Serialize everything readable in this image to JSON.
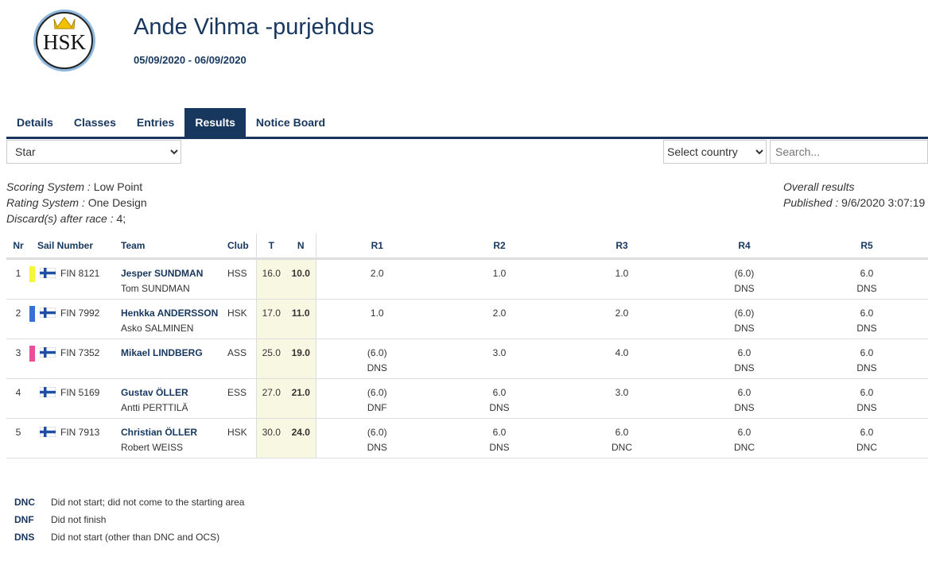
{
  "header": {
    "logo_text": "HSK",
    "title": "Ande Vihma -purjehdus",
    "dates": "05/09/2020 - 06/09/2020"
  },
  "tabs": [
    "Details",
    "Classes",
    "Entries",
    "Results",
    "Notice Board"
  ],
  "active_tab": 3,
  "filters": {
    "class_select": "Star",
    "country_select": "Select country",
    "search_placeholder": "Search..."
  },
  "info_left": [
    {
      "label": "Scoring System :",
      "value": "Low Point"
    },
    {
      "label": "Rating System :",
      "value": "One Design"
    },
    {
      "label": "Discard(s) after race :",
      "value": "4;"
    }
  ],
  "info_right": {
    "title": "Overall results",
    "label": "Published :",
    "value": "9/6/2020 3:07:19"
  },
  "table": {
    "columns": [
      "Nr",
      "Sail Number",
      "Team",
      "Club",
      "T",
      "N",
      "R1",
      "R2",
      "R3",
      "R4",
      "R5"
    ],
    "rows": [
      {
        "nr": "1",
        "color": "#f5f53c",
        "sail": "FIN 8121",
        "helm": "Jesper SUNDMAN",
        "crew": "Tom SUNDMAN",
        "club": "HSS",
        "t": "16.0",
        "n": "10.0",
        "races": [
          {
            "score": "2.0",
            "code": null
          },
          {
            "score": "1.0",
            "code": null
          },
          {
            "score": "1.0",
            "code": null
          },
          {
            "score": "(6.0)",
            "code": "DNS"
          },
          {
            "score": "6.0",
            "code": "DNS"
          }
        ]
      },
      {
        "nr": "2",
        "color": "#3a6fd8",
        "sail": "FIN 7992",
        "helm": "Henkka ANDERSSON",
        "crew": "Asko SALMINEN",
        "club": "HSK",
        "t": "17.0",
        "n": "11.0",
        "races": [
          {
            "score": "1.0",
            "code": null
          },
          {
            "score": "2.0",
            "code": null
          },
          {
            "score": "2.0",
            "code": null
          },
          {
            "score": "(6.0)",
            "code": "DNS"
          },
          {
            "score": "6.0",
            "code": "DNS"
          }
        ]
      },
      {
        "nr": "3",
        "color": "#ec4f9a",
        "sail": "FIN 7352",
        "helm": "Mikael LINDBERG",
        "crew": null,
        "club": "ASS",
        "t": "25.0",
        "n": "19.0",
        "races": [
          {
            "score": "(6.0)",
            "code": "DNS"
          },
          {
            "score": "3.0",
            "code": null
          },
          {
            "score": "4.0",
            "code": null
          },
          {
            "score": "6.0",
            "code": "DNS"
          },
          {
            "score": "6.0",
            "code": "DNS"
          }
        ]
      },
      {
        "nr": "4",
        "color": null,
        "sail": "FIN 5169",
        "helm": "Gustav ÖLLER",
        "crew": "Antti PERTTILÄ",
        "club": "ESS",
        "t": "27.0",
        "n": "21.0",
        "races": [
          {
            "score": "(6.0)",
            "code": "DNF"
          },
          {
            "score": "6.0",
            "code": "DNS"
          },
          {
            "score": "3.0",
            "code": null
          },
          {
            "score": "6.0",
            "code": "DNS"
          },
          {
            "score": "6.0",
            "code": "DNS"
          }
        ]
      },
      {
        "nr": "5",
        "color": null,
        "sail": "FIN 7913",
        "helm": "Christian ÖLLER",
        "crew": "Robert WEISS",
        "club": "HSK",
        "t": "30.0",
        "n": "24.0",
        "races": [
          {
            "score": "(6.0)",
            "code": "DNS"
          },
          {
            "score": "6.0",
            "code": "DNS"
          },
          {
            "score": "6.0",
            "code": "DNC"
          },
          {
            "score": "6.0",
            "code": "DNC"
          },
          {
            "score": "6.0",
            "code": "DNC"
          }
        ]
      }
    ]
  },
  "legend": [
    {
      "code": "DNC",
      "text": "Did not start; did not come to the starting area"
    },
    {
      "code": "DNF",
      "text": "Did not finish"
    },
    {
      "code": "DNS",
      "text": "Did not start (other than DNC and OCS)"
    }
  ]
}
